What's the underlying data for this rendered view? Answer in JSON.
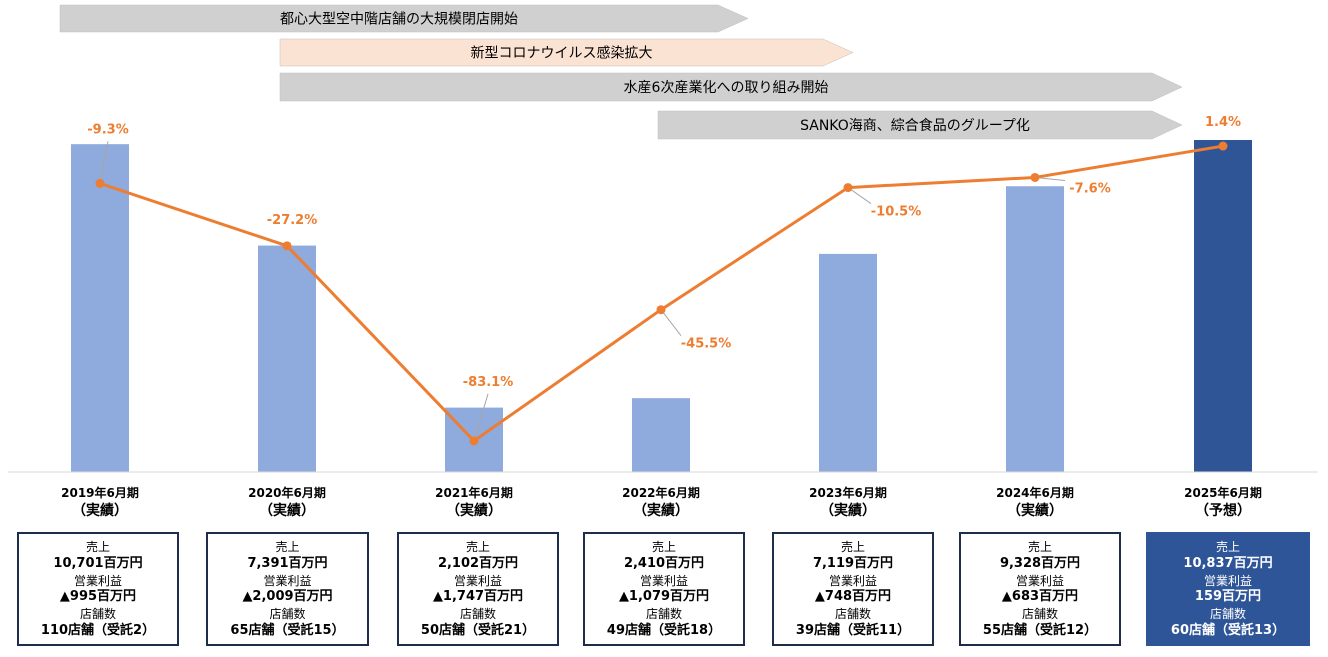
{
  "banners": [
    {
      "text": "都心大型空中階店舗の大規模閉店開始",
      "fill": "#d0d0d0"
    },
    {
      "text": "新型コロナウイルス感染拡大",
      "fill": "#fbe3d4"
    },
    {
      "text": "水産6次産業化への取り組み開始",
      "fill": "#d0d0d0"
    },
    {
      "text": "SANKO海商、綜合食品のグループ化",
      "fill": "#d0d0d0"
    }
  ],
  "colors": {
    "actual_bar": "#8faadc",
    "forecast_bar": "#2f5597",
    "line": "#ed7d31",
    "box_border": "#1f2d4d"
  },
  "chart_data": {
    "type": "bar",
    "categories": [
      "2019年6月期",
      "2020年6月期",
      "2021年6月期",
      "2022年6月期",
      "2023年6月期",
      "2024年6月期",
      "2025年6月期"
    ],
    "category_kinds": [
      "（実績）",
      "（実績）",
      "（実績）",
      "（実績）",
      "（実績）",
      "（実績）",
      "（予想）"
    ],
    "series": [
      {
        "name": "売上",
        "type": "bar",
        "unit": "百万円",
        "values": [
          10701,
          7391,
          2102,
          2410,
          7119,
          9328,
          10837
        ]
      },
      {
        "type": "line",
        "labels": [
          "-9.3%",
          "-27.2%",
          "-83.1%",
          "-45.5%",
          "-10.5%",
          "-7.6%",
          "1.4%"
        ],
        "values": [
          -9.3,
          -27.2,
          -83.1,
          -45.5,
          -10.5,
          -7.6,
          1.4
        ]
      }
    ],
    "bar_ylim": [
      0,
      11000
    ],
    "line_ylim": [
      -88,
      6
    ]
  },
  "boxes": [
    {
      "sales_label": "売上",
      "sales": "10,701百万円",
      "op_label": "営業利益",
      "op": "▲995百万円",
      "stores_label": "店舗数",
      "stores": "110店舗（受託2）"
    },
    {
      "sales_label": "売上",
      "sales": "7,391百万円",
      "op_label": "営業利益",
      "op": "▲2,009百万円",
      "stores_label": "店舗数",
      "stores": "65店舗（受託15）"
    },
    {
      "sales_label": "売上",
      "sales": "2,102百万円",
      "op_label": "営業利益",
      "op": "▲1,747百万円",
      "stores_label": "店舗数",
      "stores": "50店舗（受託21）"
    },
    {
      "sales_label": "売上",
      "sales": "2,410百万円",
      "op_label": "営業利益",
      "op": "▲1,079百万円",
      "stores_label": "店舗数",
      "stores": "49店舗（受託18）"
    },
    {
      "sales_label": "売上",
      "sales": "7,119百万円",
      "op_label": "営業利益",
      "op": "▲748百万円",
      "stores_label": "店舗数",
      "stores": "39店舗（受託11）"
    },
    {
      "sales_label": "売上",
      "sales": "9,328百万円",
      "op_label": "営業利益",
      "op": "▲683百万円",
      "stores_label": "店舗数",
      "stores": "55店舗（受託12）"
    },
    {
      "sales_label": "売上",
      "sales": "10,837百万円",
      "op_label": "営業利益",
      "op": "159百万円",
      "stores_label": "店舗数",
      "stores": "60店舗（受託13）"
    }
  ]
}
